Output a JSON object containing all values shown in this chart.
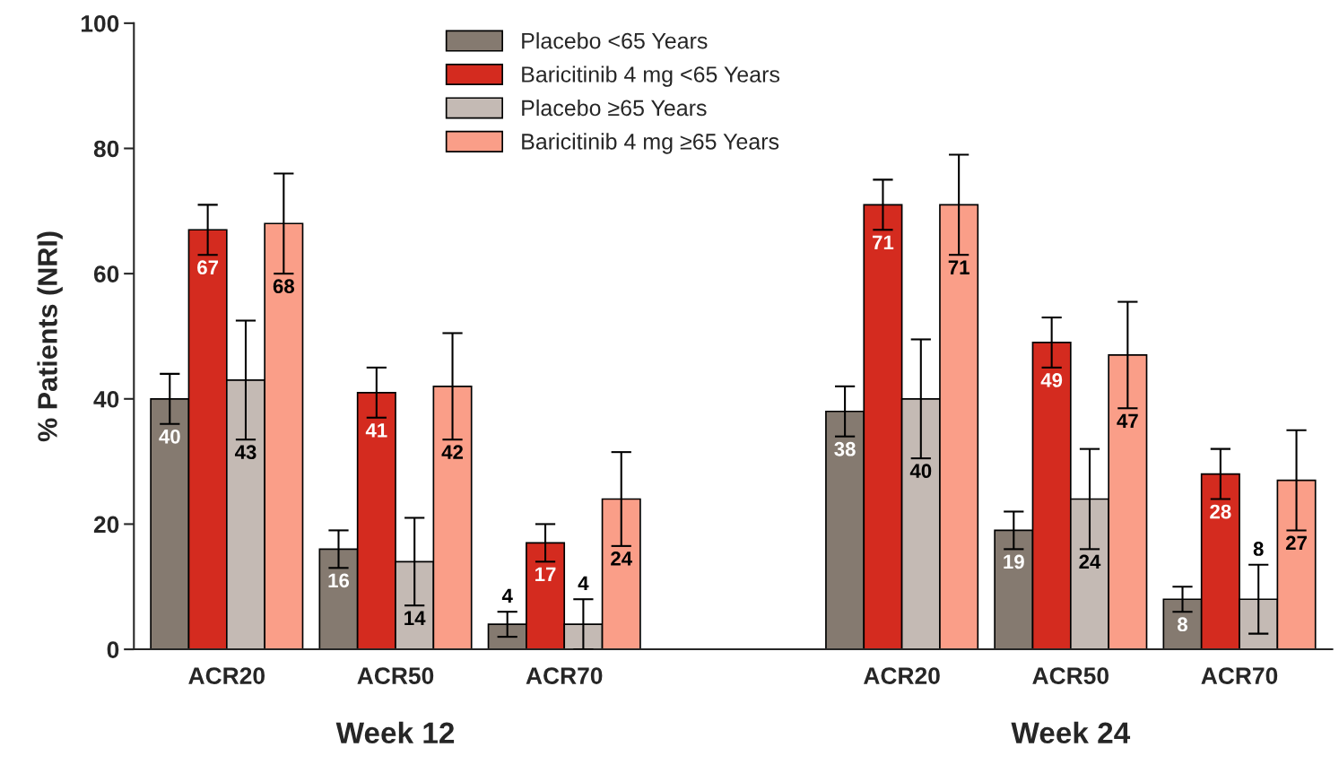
{
  "chart_data": {
    "type": "bar",
    "ylabel": "% Patients (NRI)",
    "categories": [
      "ACR20",
      "ACR50",
      "ACR70",
      null,
      "ACR20",
      "ACR50",
      "ACR70"
    ],
    "series": [
      {
        "name": "Placebo <65 Years",
        "color": "#857a70",
        "values": [
          40,
          16,
          4,
          null,
          38,
          19,
          8
        ],
        "errors": [
          4,
          3,
          2,
          null,
          4,
          3,
          2
        ]
      },
      {
        "name": "Baricitinib 4 mg <65 Years",
        "color": "#d42b1f",
        "values": [
          67,
          41,
          17,
          null,
          71,
          49,
          28
        ],
        "errors": [
          4,
          4,
          3,
          null,
          4,
          4,
          4
        ]
      },
      {
        "name": "Placebo ≥65 Years",
        "color": "#c4bab4",
        "values": [
          43,
          14,
          4,
          null,
          40,
          24,
          8
        ],
        "errors": [
          9.5,
          7,
          4,
          null,
          9.5,
          8,
          5.5
        ]
      },
      {
        "name": "Baricitinib 4 mg ≥65 Years",
        "color": "#fa9e88",
        "values": [
          68,
          42,
          24,
          null,
          71,
          47,
          27
        ],
        "errors": [
          8,
          8.5,
          7.5,
          null,
          8,
          8.5,
          8
        ]
      }
    ],
    "annotations": [
      "Week 12",
      "Week 24"
    ],
    "ylim": [
      0,
      100
    ],
    "yticks": [
      0,
      20,
      40,
      60,
      80,
      100
    ],
    "data_labels": true,
    "grid": false,
    "legend": "top"
  }
}
